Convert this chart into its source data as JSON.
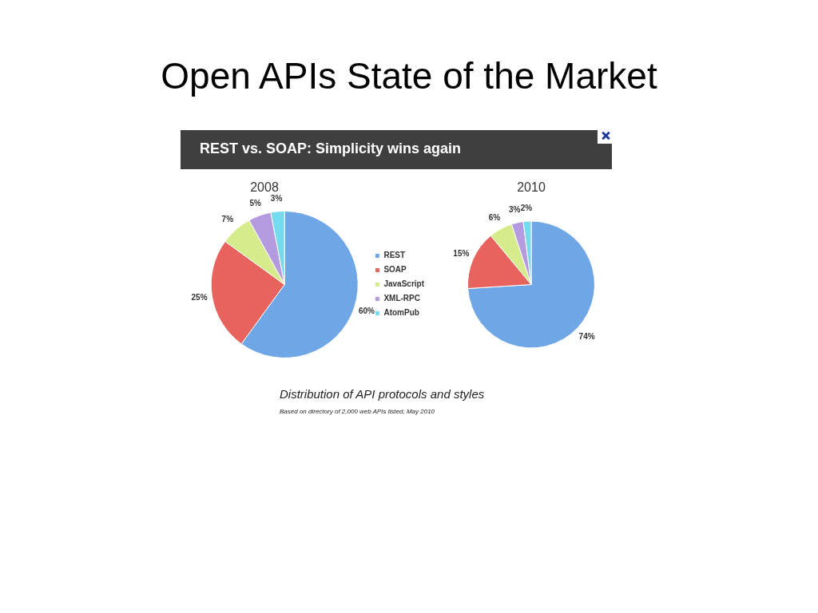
{
  "chart_data": [
    {
      "type": "pie",
      "title": "2008",
      "categories": [
        "REST",
        "SOAP",
        "JavaScript",
        "XML-RPC",
        "AtomPub"
      ],
      "values": [
        60,
        25,
        7,
        5,
        3
      ],
      "value_labels": [
        "60%",
        "25%",
        "7%",
        "5%",
        "3%"
      ],
      "colors": [
        "#6fa6e6",
        "#e9635e",
        "#d6ec8c",
        "#b49ade",
        "#74dbef"
      ],
      "legend": "right",
      "annotations": [
        "Open APIs State of the Market",
        "REST vs. SOAP: Simplicity wins again",
        "Distribution of API protocols and styles",
        "Based on directory of 2,000 web APIs listed, May 2010"
      ]
    },
    {
      "type": "pie",
      "title": "2010",
      "categories": [
        null,
        null,
        null,
        null,
        null
      ],
      "values": [
        74,
        15,
        6,
        3,
        2
      ],
      "value_labels": [
        "74%",
        "15%",
        "6%",
        "3%",
        "2%"
      ],
      "colors": [
        "#6fa6e6",
        "#e9635e",
        "#d6ec8c",
        "#b49ade",
        "#74dbef"
      ]
    }
  ]
}
